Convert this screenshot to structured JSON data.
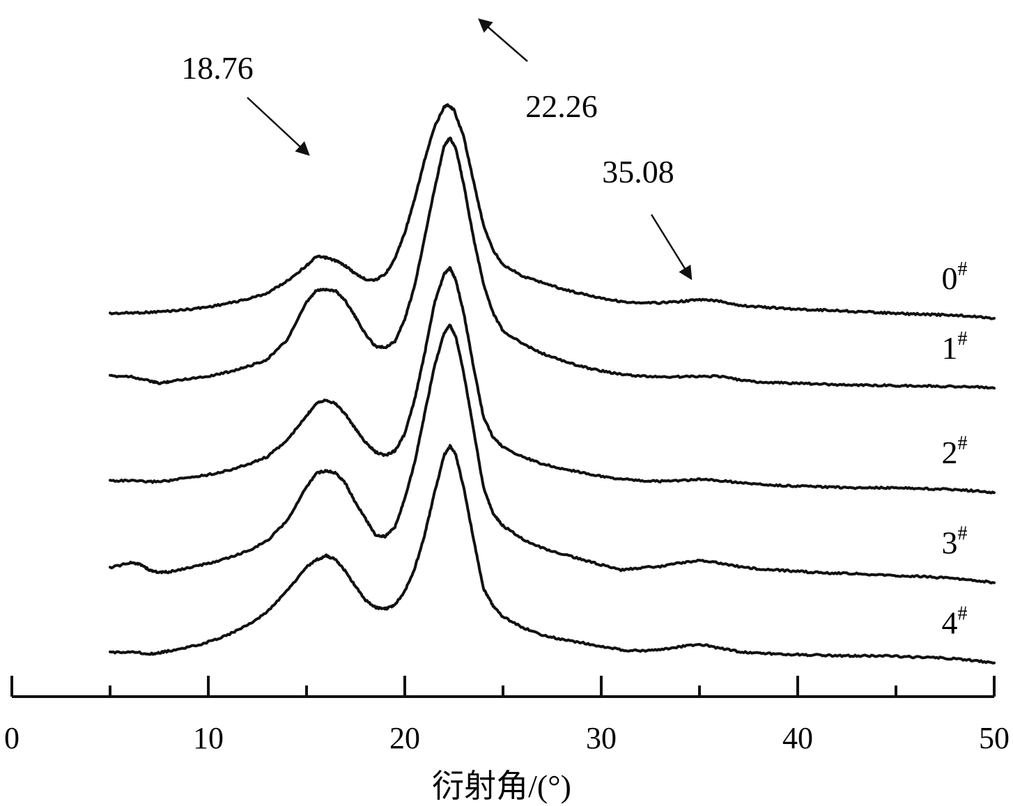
{
  "chart_data": {
    "type": "line",
    "title": "",
    "xlabel": "衍射角/(°)",
    "ylabel": "",
    "xlim": [
      0,
      50
    ],
    "x_ticks_major": [
      0,
      10,
      20,
      30,
      40,
      50
    ],
    "x_ticks_minor": [
      5,
      15,
      25,
      35,
      45
    ],
    "y_axis_shown": false,
    "grid": false,
    "legend": "none",
    "annotations": [
      {
        "text": "18.76",
        "x": 15.8
      },
      {
        "text": "22.26",
        "x": 22.2
      },
      {
        "text": "35.08",
        "x": 35.0
      }
    ],
    "series": [
      {
        "name": "0",
        "label_sup": "#",
        "x": [
          5,
          6,
          7,
          8,
          9,
          10,
          11,
          12,
          13,
          14,
          15,
          15.5,
          16,
          16.5,
          17,
          17.5,
          18,
          18.5,
          19,
          19.5,
          20,
          20.5,
          21,
          21.5,
          22,
          22.2,
          22.5,
          23,
          23.5,
          24,
          24.5,
          25,
          26,
          27,
          28,
          29,
          30,
          31,
          32,
          33,
          34,
          35,
          36,
          37,
          38,
          39,
          40,
          41,
          42,
          43,
          44,
          45,
          46,
          47,
          48,
          49,
          50
        ],
        "y": [
          0.0,
          0.01,
          0.02,
          0.04,
          0.07,
          0.11,
          0.17,
          0.24,
          0.34,
          0.54,
          0.8,
          0.95,
          0.93,
          0.88,
          0.79,
          0.66,
          0.57,
          0.56,
          0.65,
          0.92,
          1.35,
          1.9,
          2.55,
          3.1,
          3.45,
          3.48,
          3.4,
          2.95,
          2.2,
          1.48,
          1.05,
          0.82,
          0.62,
          0.52,
          0.41,
          0.33,
          0.26,
          0.2,
          0.17,
          0.18,
          0.2,
          0.23,
          0.21,
          0.14,
          0.11,
          0.09,
          0.07,
          0.06,
          0.05,
          0.03,
          0.02,
          0.0,
          -0.01,
          -0.02,
          -0.03,
          -0.05,
          -0.08
        ]
      },
      {
        "name": "1",
        "label_sup": "#",
        "x": [
          5,
          6,
          7,
          7.5,
          8,
          9,
          10,
          11,
          12,
          13,
          14,
          15,
          15.5,
          16,
          16.5,
          17,
          17.5,
          18,
          18.5,
          19,
          19.5,
          20,
          20.5,
          21,
          21.5,
          22,
          22.3,
          22.6,
          23,
          23.5,
          24,
          24.5,
          25,
          26,
          27,
          28,
          29,
          30,
          31,
          32,
          33,
          34,
          35,
          36,
          37,
          38,
          39,
          40,
          41,
          42,
          43,
          44,
          45,
          46,
          47,
          48,
          49,
          50
        ],
        "y": [
          0.0,
          0.0,
          -0.08,
          -0.12,
          -0.09,
          -0.04,
          0.0,
          0.07,
          0.16,
          0.28,
          0.6,
          1.23,
          1.43,
          1.45,
          1.42,
          1.25,
          0.98,
          0.7,
          0.5,
          0.48,
          0.58,
          0.95,
          1.5,
          2.3,
          3.1,
          3.85,
          3.98,
          3.8,
          3.2,
          2.3,
          1.55,
          1.05,
          0.75,
          0.54,
          0.38,
          0.26,
          0.16,
          0.09,
          0.03,
          0.0,
          -0.01,
          -0.01,
          0.0,
          0.0,
          -0.06,
          -0.1,
          -0.11,
          -0.12,
          -0.13,
          -0.14,
          -0.15,
          -0.15,
          -0.16,
          -0.16,
          -0.17,
          -0.17,
          -0.18,
          -0.2
        ]
      },
      {
        "name": "2",
        "label_sup": "#",
        "x": [
          5,
          6,
          7,
          8,
          9,
          10,
          11,
          12,
          13,
          14,
          15,
          15.5,
          16,
          16.5,
          17,
          17.5,
          18,
          18.5,
          19,
          19.5,
          20,
          20.5,
          21,
          21.5,
          22,
          22.3,
          22.6,
          23,
          23.5,
          24,
          24.5,
          25,
          26,
          27,
          28,
          29,
          30,
          31,
          32,
          33,
          34,
          35,
          36,
          37,
          38,
          39,
          40,
          41,
          42,
          43,
          44,
          45,
          46,
          47,
          48,
          49,
          50
        ],
        "y": [
          0.0,
          0.0,
          -0.02,
          0.0,
          0.05,
          0.1,
          0.17,
          0.27,
          0.4,
          0.67,
          1.08,
          1.3,
          1.35,
          1.28,
          1.1,
          0.86,
          0.64,
          0.48,
          0.42,
          0.5,
          0.78,
          1.35,
          2.1,
          2.95,
          3.45,
          3.55,
          3.35,
          2.8,
          1.9,
          1.07,
          0.72,
          0.56,
          0.4,
          0.28,
          0.2,
          0.14,
          0.07,
          0.03,
          0.0,
          -0.01,
          0.0,
          0.02,
          0.0,
          -0.03,
          -0.06,
          -0.08,
          -0.09,
          -0.1,
          -0.11,
          -0.12,
          -0.12,
          -0.12,
          -0.13,
          -0.14,
          -0.15,
          -0.17,
          -0.2
        ]
      },
      {
        "name": "3",
        "label_sup": "#",
        "x": [
          5,
          6,
          6.5,
          7,
          7.5,
          8,
          9,
          10,
          11,
          12,
          13,
          14,
          15,
          15.5,
          16,
          16.5,
          17,
          17.5,
          18,
          18.5,
          19,
          19.5,
          20,
          20.5,
          21,
          21.5,
          22,
          22.3,
          22.6,
          23,
          23.5,
          24,
          24.5,
          25,
          26,
          27,
          28,
          29,
          30,
          31,
          32,
          33,
          34,
          35,
          36,
          37,
          38,
          39,
          40,
          41,
          42,
          43,
          44,
          45,
          46,
          47,
          48,
          49,
          50
        ],
        "y": [
          0.0,
          0.08,
          0.07,
          -0.04,
          -0.08,
          -0.07,
          0.0,
          0.07,
          0.16,
          0.28,
          0.45,
          0.78,
          1.35,
          1.58,
          1.62,
          1.58,
          1.4,
          1.08,
          0.82,
          0.55,
          0.52,
          0.68,
          1.15,
          1.75,
          2.55,
          3.35,
          3.92,
          4.05,
          3.85,
          3.25,
          2.3,
          1.35,
          0.9,
          0.7,
          0.48,
          0.33,
          0.23,
          0.14,
          0.05,
          -0.04,
          0.0,
          0.02,
          0.08,
          0.12,
          0.08,
          0.02,
          -0.02,
          -0.04,
          -0.06,
          -0.08,
          -0.09,
          -0.1,
          -0.12,
          -0.13,
          -0.14,
          -0.16,
          -0.18,
          -0.21,
          -0.25
        ]
      },
      {
        "name": "4",
        "label_sup": "#",
        "x": [
          5,
          6,
          7,
          7.5,
          8,
          9,
          10,
          11,
          12,
          13,
          14,
          15,
          15.5,
          16,
          16.5,
          17,
          17.5,
          18,
          18.5,
          19,
          19.5,
          20,
          20.5,
          21,
          21.5,
          22,
          22.3,
          22.6,
          23,
          23.5,
          24,
          24.5,
          25,
          26,
          27,
          28,
          29,
          30,
          31,
          32,
          33,
          34,
          35,
          36,
          37,
          38,
          39,
          40,
          41,
          42,
          43,
          44,
          45,
          46,
          47,
          48,
          49,
          50
        ],
        "y": [
          0.0,
          0.02,
          -0.02,
          0.0,
          0.03,
          0.09,
          0.18,
          0.3,
          0.46,
          0.68,
          1.03,
          1.43,
          1.55,
          1.62,
          1.55,
          1.35,
          1.1,
          0.88,
          0.76,
          0.73,
          0.8,
          1.03,
          1.4,
          1.95,
          2.65,
          3.3,
          3.45,
          3.3,
          2.75,
          1.9,
          1.07,
          0.78,
          0.6,
          0.42,
          0.3,
          0.22,
          0.17,
          0.1,
          0.05,
          0.03,
          0.05,
          0.1,
          0.14,
          0.08,
          0.02,
          -0.01,
          -0.02,
          -0.03,
          -0.04,
          -0.05,
          -0.05,
          -0.05,
          -0.06,
          -0.07,
          -0.08,
          -0.1,
          -0.13,
          -0.17
        ]
      }
    ]
  }
}
